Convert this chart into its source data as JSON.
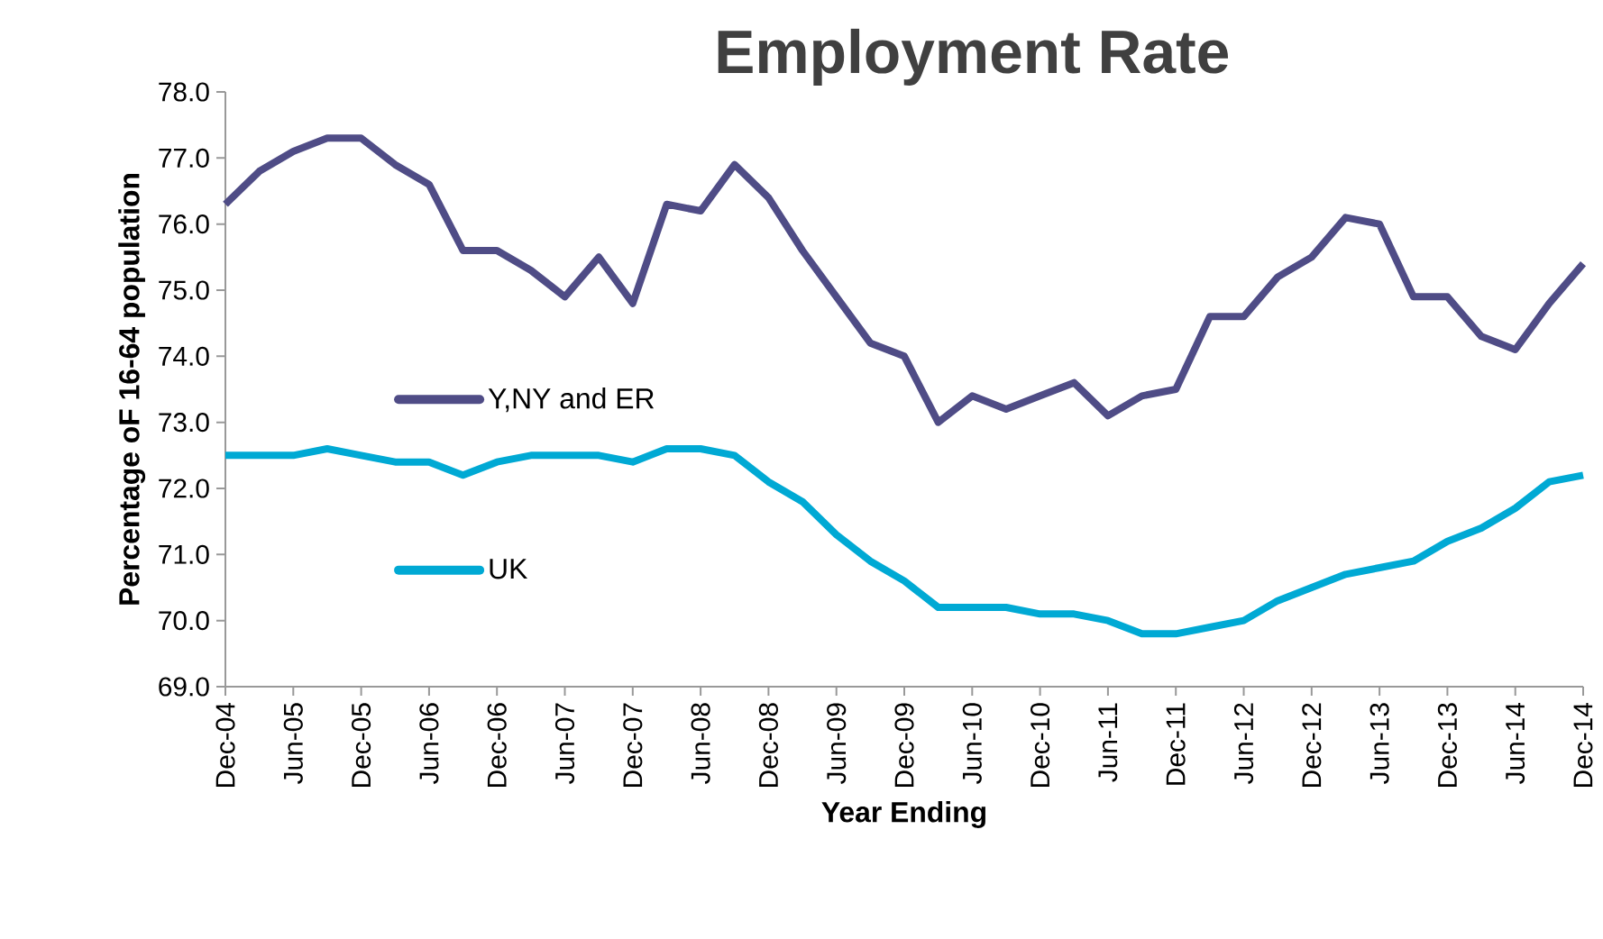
{
  "chart_data": {
    "type": "line",
    "title": "Employment Rate",
    "xlabel": "Year Ending",
    "ylabel": "Percentage oF 16-64 population",
    "categories": [
      "Dec-04",
      null,
      "Jun-05",
      null,
      "Dec-05",
      null,
      "Jun-06",
      null,
      "Dec-06",
      null,
      "Jun-07",
      null,
      "Dec-07",
      null,
      "Jun-08",
      null,
      "Dec-08",
      null,
      "Jun-09",
      null,
      "Dec-09",
      null,
      "Jun-10",
      null,
      "Dec-10",
      null,
      "Jun-11",
      null,
      "Dec-11",
      null,
      "Jun-12",
      null,
      "Dec-12",
      null,
      "Jun-13",
      null,
      "Dec-13",
      null,
      "Jun-14",
      null,
      "Dec-14"
    ],
    "series": [
      {
        "name": "Y,NY and ER",
        "color": "#4f4c86",
        "values": [
          76.3,
          76.8,
          77.1,
          77.3,
          77.3,
          76.9,
          76.6,
          75.6,
          75.6,
          75.3,
          74.9,
          75.5,
          74.8,
          76.3,
          76.2,
          76.9,
          76.4,
          75.6,
          74.9,
          74.2,
          74.0,
          73.0,
          73.4,
          73.2,
          73.4,
          73.6,
          73.1,
          73.4,
          73.5,
          74.6,
          74.6,
          75.2,
          75.5,
          76.1,
          76.0,
          74.9,
          74.9,
          74.3,
          74.1,
          74.8,
          75.4
        ]
      },
      {
        "name": "UK",
        "color": "#00a9d4",
        "values": [
          72.5,
          72.5,
          72.5,
          72.6,
          72.5,
          72.4,
          72.4,
          72.2,
          72.4,
          72.5,
          72.5,
          72.5,
          72.4,
          72.6,
          72.6,
          72.5,
          72.1,
          71.8,
          71.3,
          70.9,
          70.6,
          70.2,
          70.2,
          70.2,
          70.1,
          70.1,
          70.0,
          69.8,
          69.8,
          69.9,
          70.0,
          70.3,
          70.5,
          70.7,
          70.8,
          70.9,
          71.2,
          71.4,
          71.7,
          72.1,
          72.2
        ]
      }
    ],
    "ylim": [
      69,
      78
    ],
    "yticks": [
      {
        "value": 69,
        "label": "69.0"
      },
      {
        "value": 70,
        "label": "70.0"
      },
      {
        "value": 71,
        "label": "71.0"
      },
      {
        "value": 72,
        "label": "72.0"
      },
      {
        "value": 73,
        "label": "73.0"
      },
      {
        "value": 74,
        "label": "74.0"
      },
      {
        "value": 75,
        "label": "75.0"
      },
      {
        "value": 76,
        "label": "76.0"
      },
      {
        "value": 77,
        "label": "77.0"
      },
      {
        "value": 78,
        "label": "78.0"
      }
    ],
    "grid": false,
    "legend": "left",
    "marker": "none",
    "line_style": "solid"
  }
}
